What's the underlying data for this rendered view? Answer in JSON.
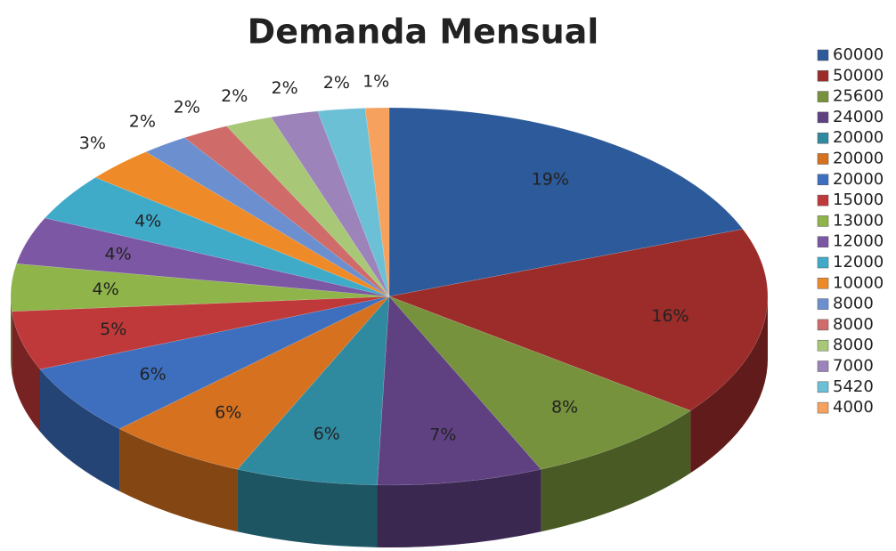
{
  "chart_data": {
    "type": "pie3d",
    "title": "Demanda Mensual",
    "categories": [
      "60000",
      "50000",
      "25600",
      "24000",
      "20000",
      "20000",
      "20000",
      "15000",
      "13000",
      "12000",
      "12000",
      "10000",
      "8000",
      "8000",
      "8000",
      "7000",
      "5420",
      "4000"
    ],
    "values": [
      19,
      16,
      8,
      7,
      6,
      6,
      6,
      5,
      4,
      4,
      4,
      3,
      2,
      2,
      2,
      2,
      2,
      1
    ],
    "value_labels": [
      "19%",
      "16%",
      "8%",
      "7%",
      "6%",
      "6%",
      "6%",
      "5%",
      "4%",
      "4%",
      "4%",
      "3%",
      "2%",
      "2%",
      "2%",
      "2%",
      "2%",
      "1%"
    ],
    "colors": [
      "#2c5a9a",
      "#9b2c2a",
      "#76923c",
      "#5f4182",
      "#2f8aa0",
      "#d5711f",
      "#3d6fbe",
      "#c0393a",
      "#8eb44a",
      "#7c57a4",
      "#3fabc9",
      "#ef8a28",
      "#6b8fcf",
      "#cf6b69",
      "#a8c878",
      "#9c83ba",
      "#6cc0d6",
      "#f6a25e"
    ],
    "legend": "right"
  }
}
